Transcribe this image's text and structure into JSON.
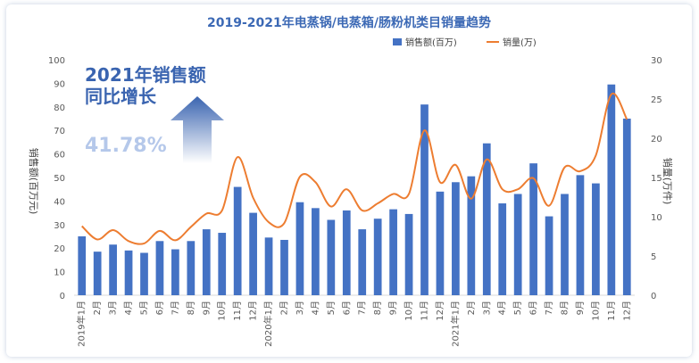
{
  "colors": {
    "bar": "#4472c4",
    "line": "#ed7d31",
    "title": "#3c69b5",
    "annotation": "#3a64b0",
    "percent": "#b5c8ea",
    "arrow_top": "#3a64b0",
    "arrow_bottom": "#ffffff"
  },
  "annotation": {
    "line1": "2021年销售额",
    "line2": "同比增长",
    "percent": "41.78%",
    "icon": "up-arrow-icon"
  },
  "chart_data": {
    "type": "bar",
    "title": "2019-2021年电蒸锅/电蒸箱/肠粉机类目销量趋势",
    "ylabel": "销售额(百万元)",
    "y2label": "销量(万件)",
    "ylim": [
      0,
      100
    ],
    "y2lim": [
      0,
      30
    ],
    "yticks": [
      "0",
      "10",
      "20",
      "30",
      "40",
      "50",
      "60",
      "70",
      "80",
      "90",
      "100"
    ],
    "y2ticks": [
      "0",
      "5",
      "10",
      "15",
      "20",
      "25",
      "30"
    ],
    "legend": "top-right",
    "grid": false,
    "categories": [
      "2019年1月",
      "2月",
      "3月",
      "4月",
      "5月",
      "6月",
      "7月",
      "8月",
      "9月",
      "10月",
      "11月",
      "12月",
      "2020年1月",
      "2月",
      "3月",
      "4月",
      "5月",
      "6月",
      "7月",
      "8月",
      "9月",
      "10月",
      "11月",
      "12月",
      "2021年1月",
      "2月",
      "3月",
      "4月",
      "5月",
      "6月",
      "7月",
      "8月",
      "9月",
      "10月",
      "11月",
      "12月"
    ],
    "series": [
      {
        "name": "销售额(百万)",
        "type": "bar",
        "axis": "left",
        "values": [
          25,
          18.5,
          21.5,
          19,
          18,
          23,
          19.5,
          23,
          28,
          26.5,
          46,
          35,
          24.5,
          23.5,
          39.5,
          37,
          32,
          36,
          28,
          32.5,
          36.5,
          34.5,
          81,
          44,
          48,
          50.5,
          64.5,
          39,
          43,
          56,
          33.5,
          43,
          51,
          47.5,
          89.5,
          75
        ]
      },
      {
        "name": "销量(万)",
        "type": "line",
        "axis": "right",
        "values": [
          8.8,
          7.1,
          8.3,
          6.9,
          6.6,
          8.2,
          7.0,
          8.7,
          10.4,
          10.8,
          17.6,
          12.4,
          9.3,
          9.2,
          15.1,
          14.4,
          11.3,
          13.5,
          10.8,
          11.7,
          12.9,
          12.9,
          21.0,
          14.4,
          16.6,
          12.3,
          17.3,
          13.5,
          13.5,
          14.9,
          11.4,
          16.3,
          15.8,
          17.8,
          25.6,
          22.4
        ]
      }
    ]
  }
}
